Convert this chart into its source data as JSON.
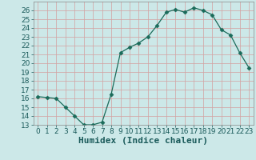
{
  "x": [
    0,
    1,
    2,
    3,
    4,
    5,
    6,
    7,
    8,
    9,
    10,
    11,
    12,
    13,
    14,
    15,
    16,
    17,
    18,
    19,
    20,
    21,
    22,
    23
  ],
  "y": [
    16.2,
    16.1,
    16.0,
    15.0,
    14.0,
    13.0,
    13.0,
    13.3,
    16.5,
    21.2,
    21.8,
    22.3,
    23.0,
    24.3,
    25.8,
    26.1,
    25.8,
    26.3,
    26.0,
    25.5,
    23.8,
    23.2,
    21.2,
    19.5
  ],
  "line_color": "#1a6b5a",
  "marker": "D",
  "marker_size": 2.5,
  "bg_color": "#cce8e8",
  "grid_color": "#b0cece",
  "xlabel": "Humidex (Indice chaleur)",
  "xlim": [
    -0.5,
    23.5
  ],
  "ylim": [
    13,
    27
  ],
  "yticks": [
    13,
    14,
    15,
    16,
    17,
    18,
    19,
    20,
    21,
    22,
    23,
    24,
    25,
    26
  ],
  "xticks": [
    0,
    1,
    2,
    3,
    4,
    5,
    6,
    7,
    8,
    9,
    10,
    11,
    12,
    13,
    14,
    15,
    16,
    17,
    18,
    19,
    20,
    21,
    22,
    23
  ],
  "tick_fontsize": 6.5,
  "xlabel_fontsize": 8
}
